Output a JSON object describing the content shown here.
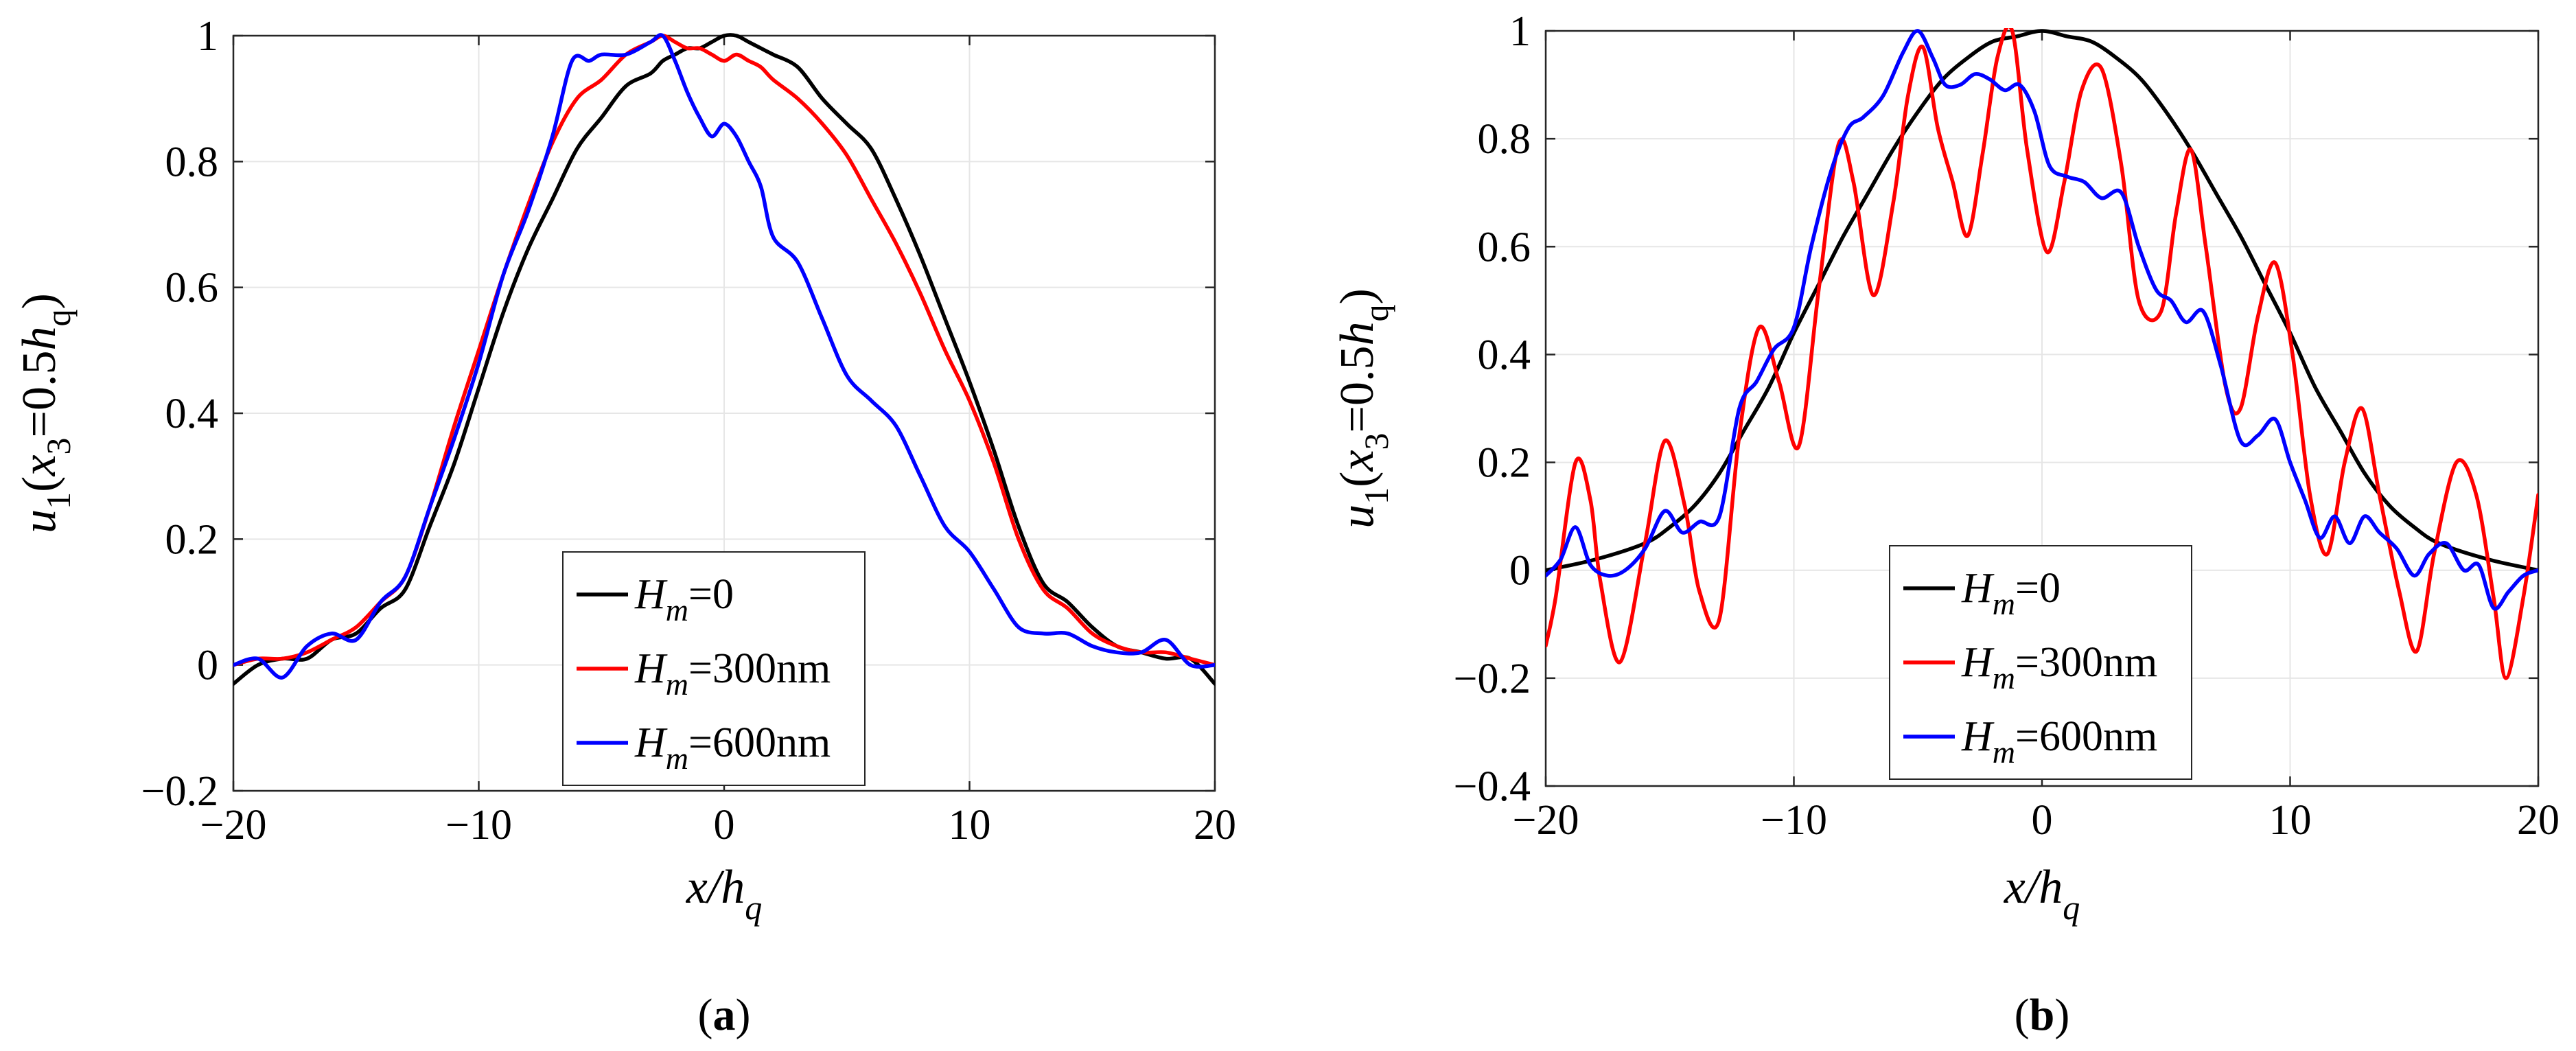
{
  "chart_data": [
    {
      "panel_label": "a",
      "type": "line",
      "xlabel": {
        "main": "x/h",
        "sub": "q"
      },
      "ylabel": {
        "pre": "u",
        "pre_sub": "1",
        "mid": "(x",
        "mid_sub": "3",
        "post": "=0.5h",
        "post_sub": "q",
        "close": ")"
      },
      "xlim": [
        -20,
        20
      ],
      "ylim": [
        -0.2,
        1
      ],
      "xticks": [
        -20,
        -10,
        0,
        10,
        20
      ],
      "yticks": [
        -0.2,
        0,
        0.2,
        0.4,
        0.6,
        0.8,
        1
      ],
      "xtick_labels": [
        "−20",
        "−10",
        "0",
        "10",
        "20"
      ],
      "ytick_labels": [
        "−0.2",
        "0",
        "0.2",
        "0.4",
        "0.6",
        "0.8",
        "1"
      ],
      "grid": true,
      "legend_position": "bottom-center",
      "series": [
        {
          "legend": {
            "var": "H",
            "sub": "m",
            "value": "=0"
          },
          "color": "#000000",
          "x": [
            -20,
            -19,
            -18,
            -17,
            -16,
            -15,
            -14,
            -13,
            -12,
            -11,
            -10,
            -9,
            -8,
            -7,
            -6,
            -5,
            -4,
            -3,
            -2.5,
            -2,
            -1.5,
            -1,
            -0.5,
            0,
            0.5,
            1,
            1.5,
            2,
            3,
            4,
            5,
            6,
            7,
            8,
            9,
            10,
            11,
            12,
            13,
            14,
            15,
            16,
            17,
            18,
            19,
            20
          ],
          "y": [
            -0.03,
            0.0,
            0.01,
            0.01,
            0.04,
            0.05,
            0.09,
            0.12,
            0.22,
            0.32,
            0.44,
            0.56,
            0.66,
            0.74,
            0.82,
            0.87,
            0.92,
            0.94,
            0.96,
            0.97,
            0.98,
            0.98,
            0.99,
            1.0,
            1.0,
            0.99,
            0.98,
            0.97,
            0.95,
            0.9,
            0.86,
            0.82,
            0.74,
            0.65,
            0.55,
            0.45,
            0.34,
            0.22,
            0.13,
            0.1,
            0.06,
            0.03,
            0.02,
            0.01,
            0.01,
            -0.03
          ]
        },
        {
          "legend": {
            "var": "H",
            "sub": "m",
            "value": "=300nm"
          },
          "color": "#ff0000",
          "x": [
            -20,
            -19,
            -18,
            -17,
            -16,
            -15,
            -14,
            -13,
            -12,
            -11,
            -10,
            -9,
            -8,
            -7,
            -6,
            -5,
            -4,
            -3,
            -2.5,
            -2,
            -1.5,
            -1,
            -0.5,
            0,
            0.5,
            1,
            1.5,
            2,
            3,
            4,
            5,
            6,
            7,
            8,
            9,
            10,
            11,
            12,
            13,
            14,
            15,
            16,
            17,
            18,
            19,
            20
          ],
          "y": [
            0.0,
            0.01,
            0.01,
            0.02,
            0.04,
            0.06,
            0.1,
            0.14,
            0.25,
            0.38,
            0.5,
            0.62,
            0.73,
            0.83,
            0.9,
            0.93,
            0.97,
            0.99,
            1.0,
            0.99,
            0.98,
            0.98,
            0.97,
            0.96,
            0.97,
            0.96,
            0.95,
            0.93,
            0.9,
            0.86,
            0.81,
            0.74,
            0.67,
            0.59,
            0.5,
            0.42,
            0.32,
            0.2,
            0.12,
            0.09,
            0.05,
            0.03,
            0.02,
            0.02,
            0.01,
            0.0
          ]
        },
        {
          "legend": {
            "var": "H",
            "sub": "m",
            "value": "=600nm"
          },
          "color": "#0000ff",
          "x": [
            -20,
            -19,
            -18,
            -17,
            -16,
            -15,
            -14,
            -13,
            -12,
            -11,
            -10,
            -9,
            -8,
            -7,
            -6.2,
            -5.5,
            -5,
            -4,
            -3,
            -2.5,
            -2,
            -1.5,
            -1,
            -0.5,
            0,
            0.5,
            1,
            1.5,
            2,
            3,
            4,
            5,
            6,
            7,
            8,
            9,
            10,
            11,
            12,
            13,
            14,
            15,
            16,
            17,
            18,
            19,
            20
          ],
          "y": [
            0.0,
            0.01,
            -0.02,
            0.03,
            0.05,
            0.04,
            0.1,
            0.14,
            0.25,
            0.36,
            0.48,
            0.62,
            0.72,
            0.84,
            0.96,
            0.96,
            0.97,
            0.97,
            0.99,
            1.0,
            0.96,
            0.91,
            0.87,
            0.84,
            0.86,
            0.84,
            0.8,
            0.76,
            0.68,
            0.64,
            0.55,
            0.46,
            0.42,
            0.38,
            0.3,
            0.22,
            0.18,
            0.12,
            0.06,
            0.05,
            0.05,
            0.03,
            0.02,
            0.02,
            0.04,
            0.0,
            0.0
          ]
        }
      ]
    },
    {
      "panel_label": "b",
      "type": "line",
      "xlabel": {
        "main": "x/h",
        "sub": "q"
      },
      "ylabel": {
        "pre": "u",
        "pre_sub": "1",
        "mid": "(x",
        "mid_sub": "3",
        "post": "=0.5h",
        "post_sub": "q",
        "close": ")"
      },
      "xlim": [
        -20,
        20
      ],
      "ylim": [
        -0.4,
        1
      ],
      "xticks": [
        -20,
        -10,
        0,
        10,
        20
      ],
      "yticks": [
        -0.4,
        -0.2,
        0,
        0.2,
        0.4,
        0.6,
        0.8,
        1
      ],
      "xtick_labels": [
        "−20",
        "−10",
        "0",
        "10",
        "20"
      ],
      "ytick_labels": [
        "−0.4",
        "−0.2",
        "0",
        "0.2",
        "0.4",
        "0.6",
        "0.8",
        "1"
      ],
      "grid": true,
      "legend_position": "bottom-center",
      "series": [
        {
          "legend": {
            "var": "H",
            "sub": "m",
            "value": "=0"
          },
          "color": "#000000",
          "x": [
            -20,
            -18,
            -16,
            -15,
            -14,
            -13,
            -12,
            -11,
            -10,
            -9,
            -8,
            -7,
            -6,
            -5,
            -4,
            -3,
            -2,
            -1,
            0,
            1,
            2,
            3,
            4,
            5,
            6,
            7,
            8,
            9,
            10,
            11,
            12,
            13,
            14,
            15,
            16,
            18,
            20
          ],
          "y": [
            0.0,
            0.02,
            0.05,
            0.08,
            0.12,
            0.18,
            0.26,
            0.34,
            0.44,
            0.53,
            0.62,
            0.7,
            0.78,
            0.85,
            0.91,
            0.95,
            0.98,
            0.99,
            1.0,
            0.99,
            0.98,
            0.95,
            0.91,
            0.85,
            0.78,
            0.7,
            0.62,
            0.53,
            0.44,
            0.34,
            0.26,
            0.18,
            0.12,
            0.08,
            0.05,
            0.02,
            0.0
          ]
        },
        {
          "legend": {
            "var": "H",
            "sub": "m",
            "value": "=300nm"
          },
          "color": "#ff0000",
          "x": [
            -20,
            -19.6,
            -18.8,
            -18.2,
            -17.8,
            -17,
            -16,
            -15.2,
            -14.4,
            -13.8,
            -13,
            -12.2,
            -11.4,
            -10.6,
            -9.8,
            -9,
            -8.2,
            -7.6,
            -6.8,
            -6,
            -5.4,
            -4.8,
            -4.2,
            -3.6,
            -3,
            -2.4,
            -1.8,
            -1.2,
            -0.6,
            0.2,
            0.9,
            1.6,
            2.4,
            3.2,
            3.9,
            4.8,
            5.4,
            6,
            6.6,
            7.4,
            8,
            8.7,
            9.4,
            10.1,
            10.8,
            11.5,
            12.2,
            12.9,
            13.6,
            14.4,
            15.1,
            15.8,
            16.7,
            17.5,
            18.2,
            18.7,
            19.4,
            20
          ],
          "y": [
            -0.14,
            -0.05,
            0.2,
            0.13,
            -0.02,
            -0.17,
            0.05,
            0.24,
            0.12,
            -0.04,
            -0.09,
            0.25,
            0.45,
            0.35,
            0.23,
            0.52,
            0.79,
            0.72,
            0.51,
            0.68,
            0.88,
            0.97,
            0.82,
            0.72,
            0.62,
            0.77,
            0.95,
            1.0,
            0.78,
            0.59,
            0.72,
            0.89,
            0.93,
            0.75,
            0.5,
            0.48,
            0.66,
            0.78,
            0.6,
            0.34,
            0.3,
            0.47,
            0.57,
            0.4,
            0.14,
            0.03,
            0.2,
            0.3,
            0.14,
            -0.04,
            -0.15,
            0.03,
            0.2,
            0.14,
            -0.05,
            -0.2,
            -0.05,
            0.14
          ]
        },
        {
          "legend": {
            "var": "H",
            "sub": "m",
            "value": "=600nm"
          },
          "color": "#0000ff",
          "x": [
            -20,
            -19.4,
            -18.8,
            -18.2,
            -17.5,
            -16.8,
            -16,
            -15.2,
            -14.5,
            -13.8,
            -13,
            -12.2,
            -11.5,
            -10.8,
            -10,
            -9.3,
            -8.5,
            -7.8,
            -7.2,
            -6.4,
            -5.6,
            -5,
            -4.4,
            -3.9,
            -3.3,
            -2.7,
            -2.1,
            -1.5,
            -0.9,
            -0.3,
            0.3,
            1,
            1.7,
            2.4,
            3.2,
            3.9,
            4.6,
            5.2,
            5.8,
            6.5,
            7.2,
            8,
            8.7,
            9.4,
            10,
            10.6,
            11.2,
            11.8,
            12.4,
            13,
            13.6,
            14.3,
            15,
            15.6,
            16.3,
            17,
            17.6,
            18.2,
            18.8,
            19.4,
            20
          ],
          "y": [
            -0.01,
            0.02,
            0.08,
            0.01,
            -0.01,
            0.0,
            0.04,
            0.11,
            0.07,
            0.09,
            0.1,
            0.3,
            0.35,
            0.41,
            0.45,
            0.6,
            0.74,
            0.82,
            0.84,
            0.88,
            0.96,
            1.0,
            0.95,
            0.9,
            0.9,
            0.92,
            0.91,
            0.89,
            0.9,
            0.85,
            0.75,
            0.73,
            0.72,
            0.69,
            0.7,
            0.6,
            0.52,
            0.5,
            0.46,
            0.48,
            0.38,
            0.24,
            0.25,
            0.28,
            0.2,
            0.13,
            0.06,
            0.1,
            0.05,
            0.1,
            0.07,
            0.04,
            -0.01,
            0.03,
            0.05,
            0.0,
            0.01,
            -0.07,
            -0.04,
            -0.01,
            0.0
          ]
        }
      ]
    }
  ]
}
